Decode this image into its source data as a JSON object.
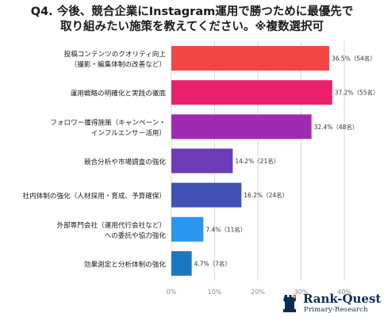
{
  "title_lines": [
    "Q4. 今後、競合企業にInstagram運用で勝つために最優先で",
    "取り組みたい施策を教えてください。※複数選択可"
  ],
  "chart_data": {
    "type": "bar",
    "orientation": "horizontal",
    "categories": [
      [
        "投稿コンテンツのクオリティ向上",
        "（撮影・編集体制の改善など）"
      ],
      [
        "運用戦略の明確化と実践の徹底"
      ],
      [
        "フォロワー獲得施策（キャンペーン・",
        "インフルエンサー活用）"
      ],
      [
        "競合分析や市場調査の強化"
      ],
      [
        "社内体制の強化（人材採用・育成、予算確保）"
      ],
      [
        "外部専門会社（運用代行会社など）",
        "への委託や協力強化"
      ],
      [
        "効果測定と分析体制の強化"
      ]
    ],
    "values": [
      36.5,
      37.2,
      32.4,
      14.2,
      16.2,
      7.4,
      4.7
    ],
    "data_labels": [
      "36.5%（54名）",
      "37.2%（55名）",
      "32.4%（48名）",
      "14.2%（21名）",
      "16.2%（24名）",
      "7.4%（11名）",
      "4.7%（7名）"
    ],
    "colors": [
      "#f24545",
      "#e8216a",
      "#a12ab2",
      "#6d3cb8",
      "#3f51b5",
      "#2b96f0",
      "#1a78c2"
    ],
    "xlim": [
      0,
      40
    ],
    "xticks": [
      "0%",
      "10%",
      "20%",
      "30%",
      "40%"
    ],
    "xtick_values": [
      0,
      10,
      20,
      30,
      40
    ],
    "grid": true
  },
  "brand": {
    "name": "Rank-Quest",
    "sub": "Primary-Research"
  }
}
